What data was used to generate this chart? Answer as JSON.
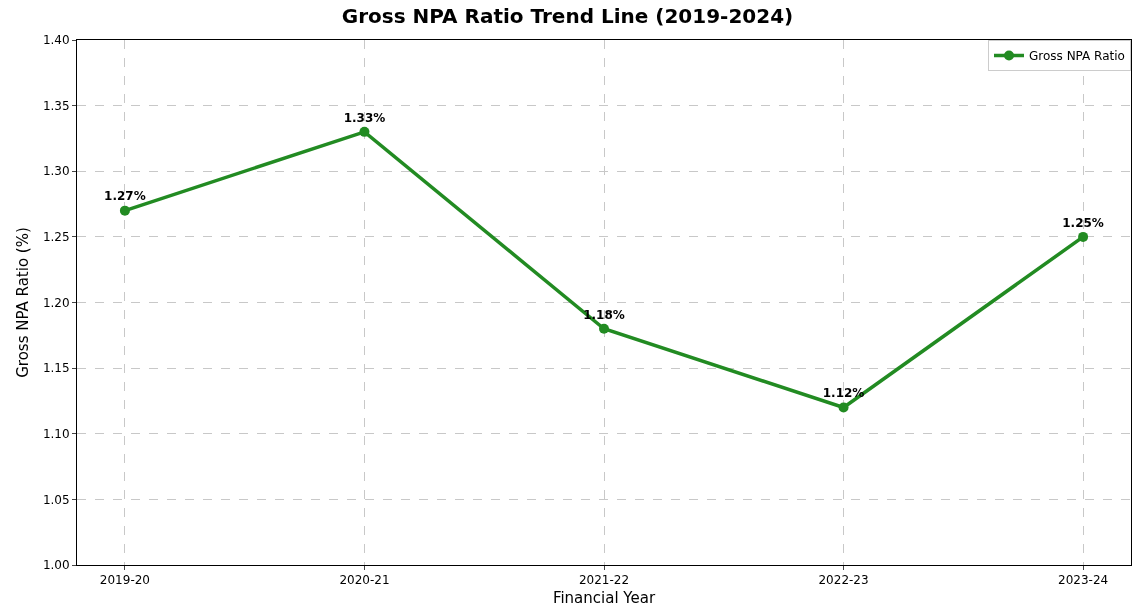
{
  "chart_data": {
    "type": "line",
    "title": "Gross NPA Ratio Trend Line (2019-2024)",
    "xlabel": "Financial Year",
    "ylabel": "Gross NPA Ratio (%)",
    "categories": [
      "2019-20",
      "2020-21",
      "2021-22",
      "2022-23",
      "2023-24"
    ],
    "series": [
      {
        "name": "Gross NPA Ratio",
        "color": "#228b22",
        "values": [
          1.27,
          1.33,
          1.18,
          1.12,
          1.25
        ],
        "value_labels": [
          "1.27%",
          "1.33%",
          "1.18%",
          "1.12%",
          "1.25%"
        ]
      }
    ],
    "ylim": [
      1.0,
      1.4
    ],
    "yticks": [
      {
        "value": 1.0,
        "label": "1.00"
      },
      {
        "value": 1.05,
        "label": "1.05"
      },
      {
        "value": 1.1,
        "label": "1.10"
      },
      {
        "value": 1.15,
        "label": "1.15"
      },
      {
        "value": 1.2,
        "label": "1.20"
      },
      {
        "value": 1.25,
        "label": "1.25"
      },
      {
        "value": 1.3,
        "label": "1.30"
      },
      {
        "value": 1.35,
        "label": "1.35"
      },
      {
        "value": 1.4,
        "label": "1.40"
      }
    ],
    "grid": true,
    "legend": "top right",
    "marker": "circle",
    "line_style": "solid"
  }
}
